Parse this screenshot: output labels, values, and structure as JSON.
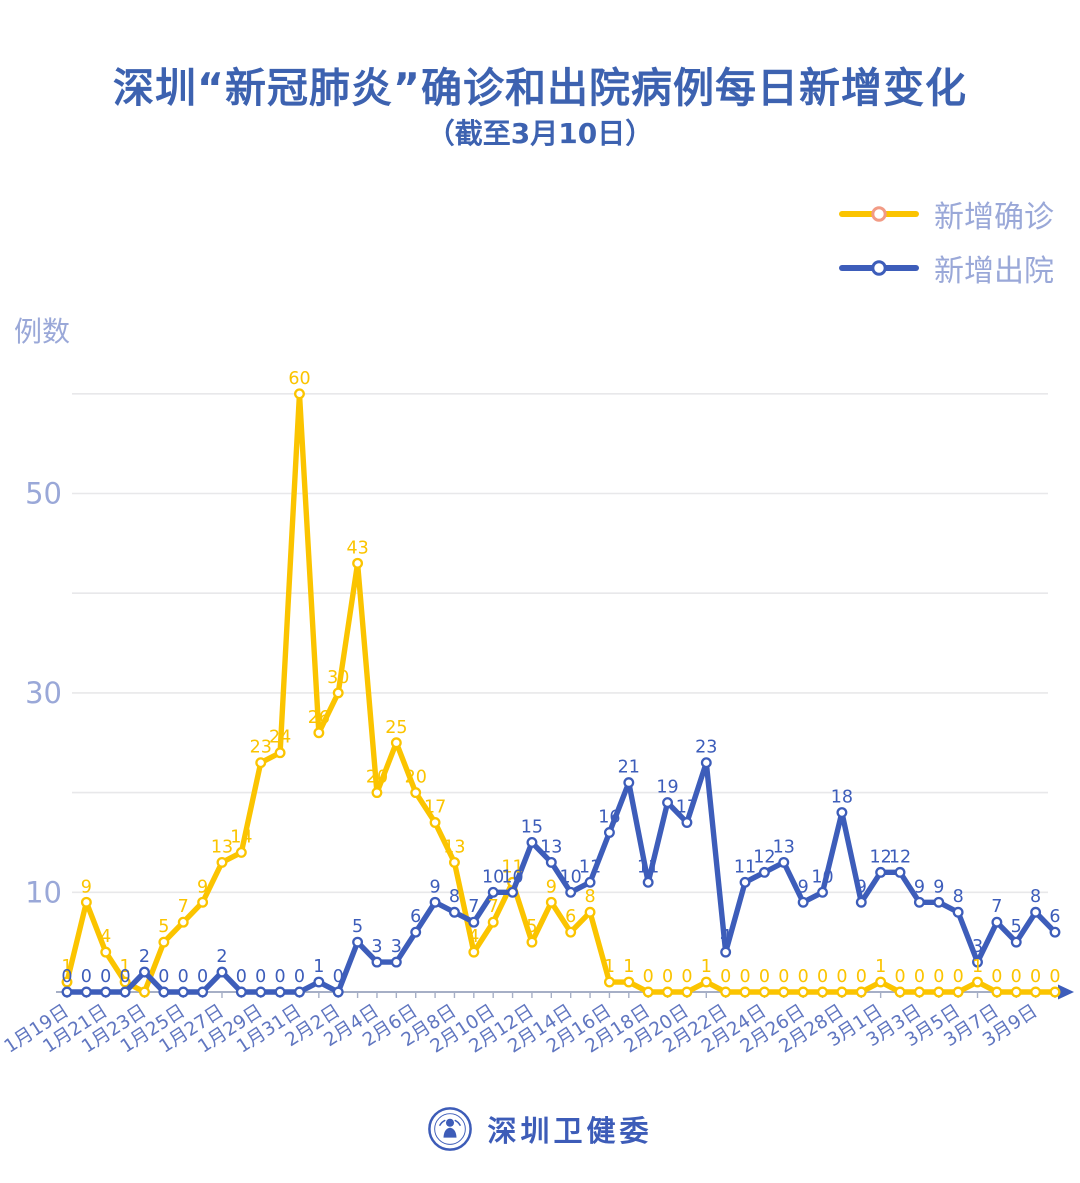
{
  "header": {
    "title": "深圳“新冠肺炎”确诊和出院病例每日新增变化",
    "subtitle": "（截至3月10日）",
    "title_color": "#3D62B0"
  },
  "legend": {
    "items": [
      {
        "label": "新增确诊",
        "color": "#FBC400",
        "marker_stroke": "#F29B85"
      },
      {
        "label": "新增出院",
        "color": "#3D5DBA",
        "marker_stroke": "#3D5DBA"
      }
    ],
    "text_color": "#9AA8D8"
  },
  "footer": {
    "org_name": "深圳卫健委",
    "logo": "shenzhen-health-commission-emblem",
    "color": "#3D5CB8"
  },
  "chart_data": {
    "type": "line",
    "title": "深圳“新冠肺炎”确诊和出院病例每日新增变化",
    "subtitle": "（截至3月10日）",
    "xlabel": "",
    "ylabel": "例数",
    "ylim": [
      0,
      62
    ],
    "grid": "horizontal",
    "legend_position": "top-right",
    "marker": "circle-white-fill",
    "x_tick_step": 2,
    "x": [
      "1月19日",
      "1月20日",
      "1月21日",
      "1月22日",
      "1月23日",
      "1月24日",
      "1月25日",
      "1月26日",
      "1月27日",
      "1月28日",
      "1月29日",
      "1月30日",
      "1月31日",
      "2月1日",
      "2月2日",
      "2月3日",
      "2月4日",
      "2月5日",
      "2月6日",
      "2月7日",
      "2月8日",
      "2月9日",
      "2月10日",
      "2月11日",
      "2月12日",
      "2月13日",
      "2月14日",
      "2月15日",
      "2月16日",
      "2月17日",
      "2月18日",
      "2月19日",
      "2月20日",
      "2月21日",
      "2月22日",
      "2月23日",
      "2月24日",
      "2月25日",
      "2月26日",
      "2月27日",
      "2月28日",
      "2月29日",
      "3月1日",
      "3月2日",
      "3月3日",
      "3月4日",
      "3月5日",
      "3月6日",
      "3月7日",
      "3月8日",
      "3月9日",
      "3月10日"
    ],
    "series": [
      {
        "name": "新增确诊",
        "color": "#FBC400",
        "values": [
          1,
          9,
          4,
          1,
          0,
          5,
          7,
          9,
          13,
          14,
          23,
          24,
          60,
          26,
          30,
          43,
          20,
          25,
          20,
          17,
          13,
          4,
          7,
          11,
          5,
          9,
          6,
          8,
          1,
          1,
          0,
          0,
          0,
          1,
          0,
          0,
          0,
          0,
          0,
          0,
          0,
          0,
          1,
          0,
          0,
          0,
          0,
          1,
          0,
          0,
          0,
          0
        ],
        "hidden_label_indices": [
          4
        ]
      },
      {
        "name": "新增出院",
        "color": "#3D5DBA",
        "values": [
          0,
          0,
          0,
          0,
          2,
          0,
          0,
          0,
          2,
          0,
          0,
          0,
          0,
          1,
          0,
          5,
          3,
          3,
          6,
          9,
          8,
          7,
          10,
          10,
          15,
          13,
          10,
          11,
          16,
          21,
          11,
          19,
          17,
          23,
          4,
          11,
          12,
          13,
          9,
          10,
          18,
          9,
          12,
          12,
          9,
          9,
          8,
          3,
          7,
          5,
          8,
          6
        ],
        "hidden_label_indices": []
      }
    ],
    "y_gridlines": [
      10,
      20,
      30,
      40,
      50,
      60
    ],
    "y_tick_labels": [
      10,
      30,
      50
    ],
    "colors": {
      "y_tick_label": "#9AA8D8",
      "x_tick_label": "#6076C0",
      "gridline": "#E8E8EA",
      "axis_line": "#A6AFC6",
      "axis_arrow": "#3D5DBA"
    }
  }
}
